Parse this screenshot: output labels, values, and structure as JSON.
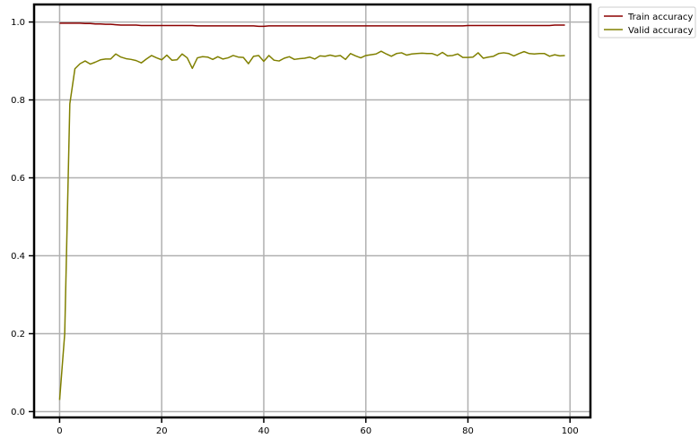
{
  "chart_data": {
    "type": "line",
    "title": "",
    "xlabel": "",
    "ylabel": "",
    "xlim": [
      -5,
      104
    ],
    "ylim": [
      -0.015,
      1.045
    ],
    "xticks": [
      0,
      20,
      40,
      60,
      80,
      100
    ],
    "xtick_labels": [
      "0",
      "20",
      "40",
      "60",
      "80",
      "100"
    ],
    "yticks": [
      0.0,
      0.2,
      0.4,
      0.6,
      0.8,
      1.0
    ],
    "ytick_labels": [
      "0.0",
      "0.2",
      "0.4",
      "0.6",
      "0.8",
      "1.0"
    ],
    "grid": true,
    "legend_position": "outside top-right",
    "series": [
      {
        "name": "Train accuracy",
        "color": "#8b0000",
        "x": [
          0,
          1,
          2,
          3,
          4,
          5,
          6,
          7,
          8,
          9,
          10,
          11,
          12,
          13,
          14,
          15,
          16,
          17,
          18,
          19,
          20,
          21,
          22,
          23,
          24,
          25,
          26,
          27,
          28,
          29,
          30,
          31,
          32,
          33,
          34,
          35,
          36,
          37,
          38,
          39,
          40,
          41,
          42,
          43,
          44,
          45,
          46,
          47,
          48,
          49,
          50,
          51,
          52,
          53,
          54,
          55,
          56,
          57,
          58,
          59,
          60,
          61,
          62,
          63,
          64,
          65,
          66,
          67,
          68,
          69,
          70,
          71,
          72,
          73,
          74,
          75,
          76,
          77,
          78,
          79,
          80,
          81,
          82,
          83,
          84,
          85,
          86,
          87,
          88,
          89,
          90,
          91,
          92,
          93,
          94,
          95,
          96,
          97,
          98,
          99
        ],
        "values": [
          0.997,
          0.997,
          0.997,
          0.997,
          0.997,
          0.996,
          0.996,
          0.995,
          0.995,
          0.994,
          0.994,
          0.993,
          0.992,
          0.992,
          0.992,
          0.992,
          0.991,
          0.991,
          0.991,
          0.991,
          0.991,
          0.991,
          0.991,
          0.991,
          0.991,
          0.991,
          0.991,
          0.99,
          0.99,
          0.99,
          0.99,
          0.99,
          0.99,
          0.99,
          0.99,
          0.99,
          0.99,
          0.99,
          0.99,
          0.989,
          0.989,
          0.99,
          0.99,
          0.99,
          0.99,
          0.99,
          0.99,
          0.99,
          0.99,
          0.99,
          0.99,
          0.99,
          0.99,
          0.99,
          0.99,
          0.99,
          0.99,
          0.99,
          0.99,
          0.99,
          0.99,
          0.99,
          0.99,
          0.99,
          0.99,
          0.99,
          0.99,
          0.99,
          0.99,
          0.99,
          0.99,
          0.99,
          0.99,
          0.99,
          0.99,
          0.99,
          0.99,
          0.99,
          0.99,
          0.99,
          0.991,
          0.991,
          0.991,
          0.991,
          0.991,
          0.991,
          0.991,
          0.991,
          0.991,
          0.991,
          0.991,
          0.991,
          0.991,
          0.991,
          0.991,
          0.991,
          0.991,
          0.992,
          0.992,
          0.992
        ]
      },
      {
        "name": "Valid accuracy",
        "color": "#808000",
        "x": [
          0,
          1,
          2,
          3,
          4,
          5,
          6,
          7,
          8,
          9,
          10,
          11,
          12,
          13,
          14,
          15,
          16,
          17,
          18,
          19,
          20,
          21,
          22,
          23,
          24,
          25,
          26,
          27,
          28,
          29,
          30,
          31,
          32,
          33,
          34,
          35,
          36,
          37,
          38,
          39,
          40,
          41,
          42,
          43,
          44,
          45,
          46,
          47,
          48,
          49,
          50,
          51,
          52,
          53,
          54,
          55,
          56,
          57,
          58,
          59,
          60,
          61,
          62,
          63,
          64,
          65,
          66,
          67,
          68,
          69,
          70,
          71,
          72,
          73,
          74,
          75,
          76,
          77,
          78,
          79,
          80,
          81,
          82,
          83,
          84,
          85,
          86,
          87,
          88,
          89,
          90,
          91,
          92,
          93,
          94,
          95,
          96,
          97,
          98,
          99
        ],
        "values": [
          0.03,
          0.2,
          0.79,
          0.88,
          0.893,
          0.9,
          0.892,
          0.897,
          0.903,
          0.905,
          0.905,
          0.918,
          0.91,
          0.906,
          0.904,
          0.901,
          0.895,
          0.905,
          0.914,
          0.908,
          0.903,
          0.915,
          0.902,
          0.903,
          0.918,
          0.908,
          0.881,
          0.908,
          0.911,
          0.91,
          0.904,
          0.911,
          0.905,
          0.908,
          0.914,
          0.91,
          0.909,
          0.893,
          0.912,
          0.914,
          0.899,
          0.914,
          0.902,
          0.9,
          0.907,
          0.911,
          0.904,
          0.906,
          0.907,
          0.91,
          0.905,
          0.913,
          0.912,
          0.915,
          0.912,
          0.914,
          0.904,
          0.919,
          0.913,
          0.908,
          0.914,
          0.916,
          0.918,
          0.925,
          0.918,
          0.912,
          0.919,
          0.921,
          0.915,
          0.918,
          0.919,
          0.92,
          0.919,
          0.919,
          0.914,
          0.922,
          0.913,
          0.914,
          0.918,
          0.909,
          0.909,
          0.91,
          0.921,
          0.907,
          0.91,
          0.912,
          0.919,
          0.921,
          0.919,
          0.913,
          0.919,
          0.924,
          0.919,
          0.918,
          0.919,
          0.919,
          0.912,
          0.916,
          0.913,
          0.914
        ]
      }
    ]
  }
}
